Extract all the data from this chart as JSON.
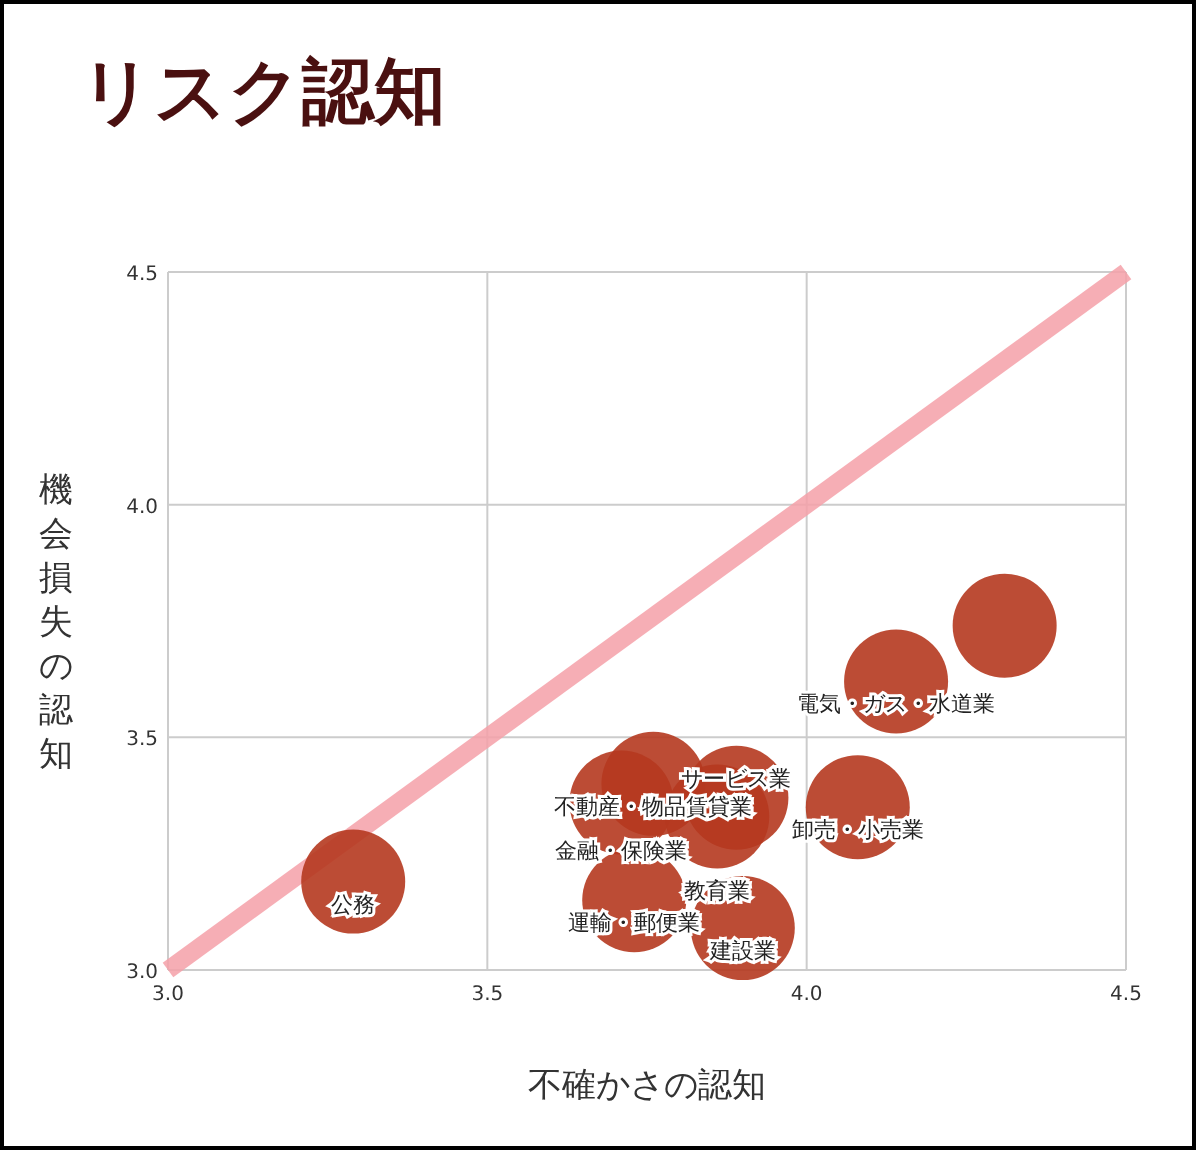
{
  "chart_data": {
    "type": "bubble",
    "title": "リスク認知",
    "xlabel": "不確かさの認知",
    "ylabel": "機会損失の認知",
    "xlim": [
      3,
      4.5
    ],
    "ylim": [
      3,
      4.5
    ],
    "xticks": [
      {
        "value": 3,
        "label": "3.0"
      },
      {
        "value": 3.5,
        "label": "3.5"
      },
      {
        "value": 4,
        "label": "4.0"
      },
      {
        "value": 4.5,
        "label": "4.5"
      }
    ],
    "yticks": [
      {
        "value": 3,
        "label": "3.0"
      },
      {
        "value": 3.5,
        "label": "3.5"
      },
      {
        "value": 4,
        "label": "4.0"
      },
      {
        "value": 4.5,
        "label": "4.5"
      }
    ],
    "grid": true,
    "series": [
      {
        "type": "line",
        "color": "#f4a0a8",
        "x": [
          3,
          4.5
        ],
        "values": [
          3,
          4.5
        ]
      },
      {
        "color": "#b5381f",
        "x": [
          3.29,
          3.73,
          3.9,
          4.08,
          4.14,
          4.31,
          3.76,
          3.71,
          3.89,
          3.86
        ],
        "values": [
          3.19,
          3.15,
          3.09,
          3.35,
          3.62,
          3.74,
          3.4,
          3.36,
          3.37,
          3.33
        ],
        "sizes": [
          1,
          1,
          1,
          1,
          1,
          1,
          1,
          1,
          1,
          1
        ]
      }
    ],
    "annotations": [
      {
        "text": "公務",
        "x": 3.29,
        "y": 3.19
      },
      {
        "text": "運輸・郵便業",
        "x": 3.73,
        "y": 3.15
      },
      {
        "text": "建設業",
        "x": 3.9,
        "y": 3.09
      },
      {
        "text": "卸売・小売業",
        "x": 4.08,
        "y": 3.35
      },
      {
        "text": "電気・ガス・水道業",
        "x": 4.14,
        "y": 3.62
      },
      {
        "text": "不動産・物品賃貸業",
        "x": 3.76,
        "y": 3.4
      },
      {
        "text": "金融・保険業",
        "x": 3.71,
        "y": 3.36
      },
      {
        "text": "サービス業",
        "x": 3.89,
        "y": 3.37
      },
      {
        "text": "教育業",
        "x": 3.86,
        "y": 3.33
      }
    ]
  }
}
